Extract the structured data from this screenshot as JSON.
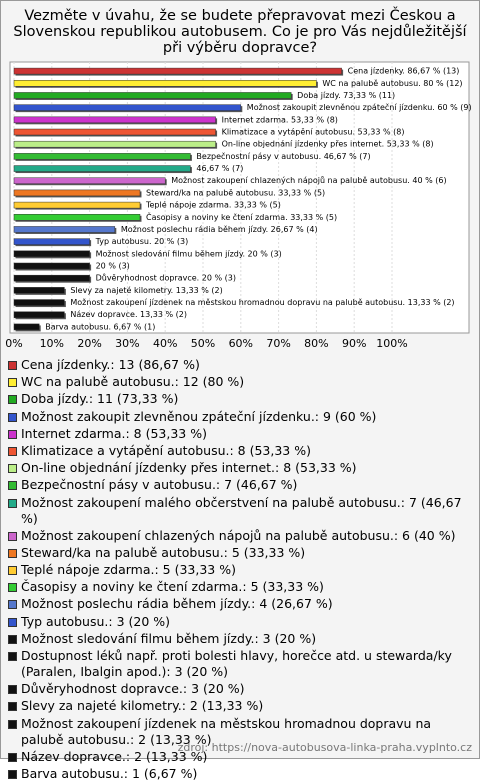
{
  "chart_data": {
    "type": "bar",
    "orientation": "horizontal",
    "title": "Vezměte v úvahu, že se budete přepravovat mezi Českou a Slovenskou republikou autobusem. Co je pro Vás nejdůležitější při výběru dopravce?",
    "categories": [
      "Cena jízdenky.: 13 (86,67 %)",
      "WC na palubě autobusu.: 12 (80 %)",
      "Doba jízdy.: 11 (73,33 %)",
      "Možnost zakoupit zlevněnou zpáteční jízdenku.: 9 (60 %)",
      "Internet zdarma.: 8 (53,33 %)",
      "Klimatizace a vytápění autobusu.: 8 (53,33 %)",
      "On-line objednání jízdenky přes internet.: 8 (53,33 %)",
      "Bezpečnostní pásy v autobusu.: 7 (46,67 %)",
      "Možnost zakoupení malého občerstvení na palubě autobusu.: 7 (46,67 %)",
      "Možnost zakoupení chlazených nápojů na palubě autobusu.: 6 (40 %)",
      "Steward/ka na palubě autobusu.: 5 (33,33 %)",
      "Teplé nápoje zdarma.: 5 (33,33 %)",
      "Časopisy a noviny ke čtení zdarma.: 5 (33,33 %)",
      "Možnost poslechu rádia během jízdy.: 4 (26,67 %)",
      "Typ autobusu.: 3 (20 %)",
      "Možnost sledování filmu během jízdy.: 3 (20 %)",
      "Dostupnost léků např. proti bolesti hlavy, horečce atd. u stewarda/ky (Paralen, Ibalgin apod.): 3 (20 %)",
      "Důvěryhodnost dopravce.: 3 (20 %)",
      "Slevy za najeté kilometry.: 2 (13,33 %)",
      "Možnost zakoupení jízdenek na městskou hromadnou dopravu na palubě autobusu.: 2 (13,33 %)",
      "Název dopravce.: 2 (13,33 %)",
      "Barva autobusu.: 1 (6,67 %)"
    ],
    "values": [
      86.67,
      80,
      73.33,
      60,
      53.33,
      53.33,
      53.33,
      46.67,
      46.67,
      40,
      33.33,
      33.33,
      33.33,
      26.67,
      20,
      20,
      20,
      20,
      13.33,
      13.33,
      13.33,
      6.67
    ],
    "value_labels": [
      "Cena jízdenky. 86,67 % (13)",
      "WC na palubě autobusu. 80 % (12)",
      "Doba jízdy. 73,33 % (11)",
      "Možnost zakoupit zlevněnou zpáteční jízdenku. 60 % (9)",
      "Internet zdarma. 53,33 % (8)",
      "Klimatizace a vytápění autobusu. 53,33 % (8)",
      "On-line objednání jízdenky přes internet. 53,33 % (8)",
      "Bezpečnostní pásy v autobusu. 46,67 % (7)",
      "46,67 % (7)",
      "Možnost zakoupení chlazených nápojů na palubě autobusu. 40 % (6)",
      "Steward/ka na palubě autobusu. 33,33 % (5)",
      "Teplé nápoje zdarma. 33,33 % (5)",
      "Časopisy a noviny ke čtení zdarma. 33,33 % (5)",
      "Možnost poslechu rádia během jízdy. 26,67 % (4)",
      "Typ autobusu. 20 % (3)",
      "Možnost sledování filmu během jízdy. 20 % (3)",
      "20 % (3)",
      "Důvěryhodnost dopravce. 20 % (3)",
      "Slevy za najeté kilometry. 13,33 % (2)",
      "Možnost zakoupení jízdenek na městskou hromadnou dopravu na palubě autobusu. 13,33 % (2)",
      "Název dopravce. 13,33 % (2)",
      "Barva autobusu. 6,67 % (1)"
    ],
    "colors": [
      "#cc3333",
      "#ffee33",
      "#22aa22",
      "#3355cc",
      "#cc33cc",
      "#ee5533",
      "#bbee88",
      "#33bb33",
      "#22aa88",
      "#cc66cc",
      "#ee7722",
      "#ffcc33",
      "#33cc33",
      "#5577cc",
      "#3355cc",
      "#111111",
      "#111111",
      "#111111",
      "#111111",
      "#111111",
      "#111111",
      "#111111"
    ],
    "xlim": [
      0,
      100
    ],
    "xticks": [
      {
        "value": 0,
        "label": "0%"
      },
      {
        "value": 10,
        "label": "10%"
      },
      {
        "value": 20,
        "label": "20%"
      },
      {
        "value": 30,
        "label": "30%"
      },
      {
        "value": 40,
        "label": "40%"
      },
      {
        "value": 50,
        "label": "50%"
      },
      {
        "value": 60,
        "label": "60%"
      },
      {
        "value": 70,
        "label": "70%"
      },
      {
        "value": 80,
        "label": "80%"
      },
      {
        "value": 90,
        "label": "90%"
      },
      {
        "value": 100,
        "label": "100%"
      }
    ],
    "grid": true,
    "source": "zdroj: https://nova-autobusova-linka-praha.vyplnto.cz"
  }
}
